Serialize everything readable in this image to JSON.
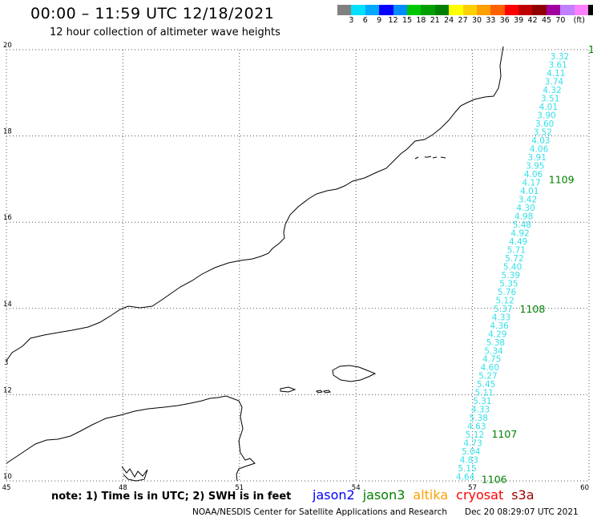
{
  "header": {
    "title": "00:00 – 11:59 UTC 12/18/2021",
    "subtitle": "12 hour collection of altimeter wave heights"
  },
  "color_scale": {
    "colors": [
      "#808080",
      "#00e0ff",
      "#00a8ff",
      "#0000ff",
      "#008cff",
      "#00c800",
      "#00a000",
      "#008000",
      "#ffff00",
      "#ffd000",
      "#ffa000",
      "#ff6000",
      "#ff0000",
      "#c00000",
      "#900000",
      "#a000a0",
      "#c080ff",
      "#ff80ff",
      "#000000"
    ],
    "labels": [
      "3",
      "6",
      "9",
      "12",
      "15",
      "18",
      "21",
      "24",
      "27",
      "30",
      "33",
      "36",
      "39",
      "42",
      "45",
      "70",
      "(ft)"
    ]
  },
  "axes": {
    "lat_labels": [
      "20",
      "18",
      "16",
      "14",
      "12",
      "10"
    ],
    "lon_labels": [
      "45",
      "48",
      "51",
      "54",
      "57",
      "60"
    ],
    "lat_values": [
      20,
      18,
      16,
      14,
      12,
      10
    ],
    "lon_values": [
      45,
      48,
      51,
      54,
      57,
      60
    ]
  },
  "track": {
    "swh_values": [
      "3.32",
      "3.61",
      "4.11",
      "3.74",
      "4.32",
      "3.51",
      "4.01",
      "3.90",
      "3.60",
      "3.52",
      "4.03",
      "4.06",
      "3.91",
      "3.95",
      "4.06",
      "4.17",
      "4.01",
      "3.42",
      "4.30",
      "4.98",
      "5.48",
      "4.92",
      "4.49",
      "5.71",
      "5.72",
      "5.40",
      "5.39",
      "5.35",
      "5.76",
      "5.12",
      "5.37",
      "4.33",
      "4.36",
      "4.29",
      "5.38",
      "5.34",
      "4.75",
      "4.60",
      "5.27",
      "5.45",
      "5.11",
      "5.31",
      "4.33",
      "5.38",
      "4.63",
      "5.12",
      "4.73",
      "5.04",
      "4.83",
      "5.15",
      "4.64"
    ],
    "cycles": [
      {
        "label": "1109",
        "lat": 17.0
      },
      {
        "label": "1108",
        "lat": 14.0
      },
      {
        "label": "1107",
        "lat": 11.1
      },
      {
        "label": "1106",
        "lat": 10.05
      }
    ],
    "edge_label": "1",
    "color": "#33e0e8",
    "cycle_color": "#008000"
  },
  "coast": {
    "island_label": "3"
  },
  "note": "note: 1) Time is in UTC; 2) SWH is in feet",
  "satellites": [
    {
      "name": "jason2",
      "color": "#0000ff"
    },
    {
      "name": "jason3",
      "color": "#008000"
    },
    {
      "name": "altika",
      "color": "#ffa000"
    },
    {
      "name": "cryosat",
      "color": "#ff0000"
    },
    {
      "name": "s3a",
      "color": "#a00000"
    }
  ],
  "footer": {
    "source": "NOAA/NESDIS Center for Satellite Applications and Research",
    "timestamp": "Dec 20 08:29:07 UTC 2021"
  }
}
